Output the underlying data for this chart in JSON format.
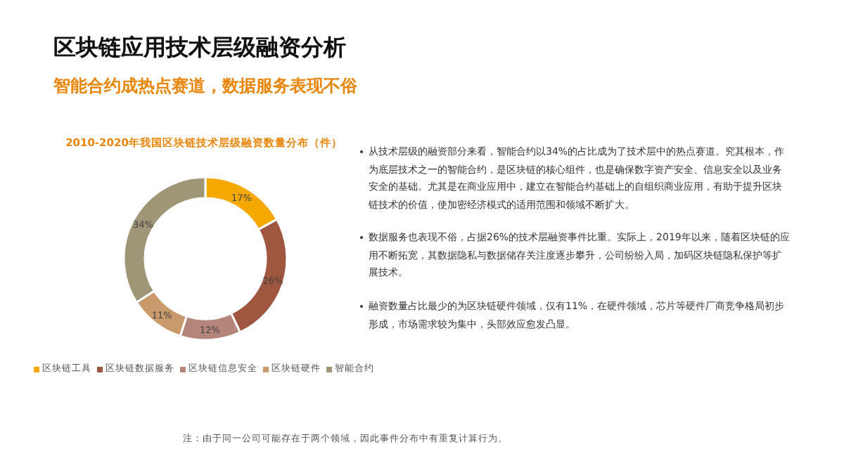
{
  "chart_data": {
    "type": "donut",
    "title": "区块链应用技术层级融资分析",
    "subtitle": "智能合约成热点赛道，数据服务表现不俗",
    "categories": [
      "区块链工具",
      "区块链数据服务",
      "区块链信息安全",
      "区块链硬件",
      "智能合约"
    ],
    "values": [
      17,
      26,
      12,
      11,
      34
    ],
    "value_labels": [
      "17%",
      "26%",
      "12%",
      "11%",
      "34%"
    ],
    "colors": [
      "#f5a800",
      "#a0573f",
      "#b5857a",
      "#c99a6b",
      "#9e9677"
    ],
    "legend": "bottom",
    "annotations": [
      "2010-2020年我国区块链技术层级融资数量分布（件）",
      "从技术层级的融资部分来看，智能合约以34%的占比成为了技术层中的热点赛道。究其根本，作为底层技术之一的智能合约，是区块链的核心组件，也是确保数字资产安全、信息安全以及业务安全的基础。尤其是在商业应用中，建立在智能合约基础上的自组织商业应用，有助于提升区块链技术的价值，使加密经济模式的适用范围和领域不断扩大。",
      "数据服务也表现不俗，占据26%的技术层融资事件比重。实际上，2019年以来，随着区块链的应用不断拓宽，其数据隐私与数据储存关注度逐步攀升，公司纷纷入局，加码区块链隐私保护等扩展技术。",
      "融资数量占比最少的为区块链硬件领域，仅有11%，在硬件领域，芯片等硬件厂商竞争格局初步形成，市场需求较为集中，头部效应愈发凸显。",
      "注：由于同一公司可能存在于两个领域，因此事件分布中有重复计算行为。"
    ]
  }
}
